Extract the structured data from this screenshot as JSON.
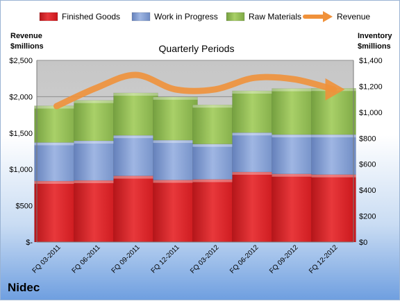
{
  "company": "Nidec",
  "chart_data": {
    "type": "bar",
    "title": "Quarterly Periods",
    "left_axis_title": [
      "Revenue",
      "$millions"
    ],
    "right_axis_title": [
      "Inventory",
      "$millions"
    ],
    "categories": [
      "FQ 03-2011",
      "FQ 06-2011",
      "FQ 09-2011",
      "FQ 12-2011",
      "FQ 03-2012",
      "FQ 06-2012",
      "FQ 09-2012",
      "FQ 12-2012"
    ],
    "stacked": true,
    "series": [
      {
        "name": "Finished Goods",
        "axis": "right",
        "color": "#e0242a",
        "values": [
          470,
          475,
          510,
          478,
          483,
          540,
          525,
          520
        ]
      },
      {
        "name": "Work in Progress",
        "axis": "right",
        "color": "#7f9cd2",
        "values": [
          297,
          305,
          312,
          307,
          272,
          303,
          303,
          308
        ]
      },
      {
        "name": "Raw Materials",
        "axis": "right",
        "color": "#92c050",
        "values": [
          283,
          312,
          327,
          333,
          302,
          322,
          355,
          357
        ]
      },
      {
        "name": "Revenue",
        "axis": "left",
        "type": "line",
        "color": "#f0913a",
        "values": [
          1870,
          2120,
          2300,
          2100,
          2100,
          2260,
          2240,
          2100
        ]
      }
    ],
    "left_axis": {
      "ylim": [
        0,
        2500
      ],
      "ticks": [
        0,
        500,
        1000,
        1500,
        2000,
        2500
      ],
      "tick_labels": [
        "$-",
        "$500",
        "$1,000",
        "$1,500",
        "$2,000",
        "$2,500"
      ]
    },
    "right_axis": {
      "ylim": [
        0,
        1400
      ],
      "ticks": [
        0,
        200,
        400,
        600,
        800,
        1000,
        1200,
        1400
      ],
      "tick_labels": [
        "$0",
        "$200",
        "$400",
        "$600",
        "$800",
        "$1,000",
        "$1,200",
        "$1,400"
      ]
    },
    "grid": true,
    "legend_position": "top"
  }
}
